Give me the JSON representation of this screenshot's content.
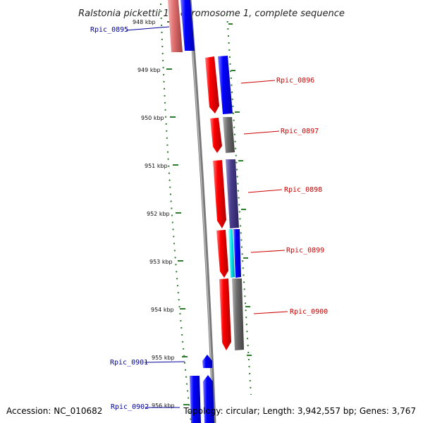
{
  "title": "Ralstonia pickettii 12J chromosome 1, complete sequence",
  "footer": {
    "accession": "Accession: NC_010682",
    "summary": "Topology: circular; Length: 3,942,557 bp; Genes: 3,767"
  },
  "colors": {
    "backbone": "#888888",
    "tick": "#2e7d2e",
    "forward_label": "#cc0000",
    "reverse_label": "#00009a"
  },
  "ticks": [
    {
      "label": "948 kbp"
    },
    {
      "label": "949 kbp"
    },
    {
      "label": "950 kbp"
    },
    {
      "label": "951 kbp"
    },
    {
      "label": "952 kbp"
    },
    {
      "label": "953 kbp"
    },
    {
      "label": "954 kbp"
    },
    {
      "label": "955 kbp"
    },
    {
      "label": "956 kbp"
    }
  ],
  "genes": [
    {
      "name": "Rpic_0895",
      "strand": "reverse",
      "label_color": "#00009a"
    },
    {
      "name": "Rpic_0896",
      "strand": "forward",
      "label_color": "#cc0000"
    },
    {
      "name": "Rpic_0897",
      "strand": "forward",
      "label_color": "#cc0000"
    },
    {
      "name": "Rpic_0898",
      "strand": "forward",
      "label_color": "#cc0000"
    },
    {
      "name": "Rpic_0899",
      "strand": "forward",
      "label_color": "#cc0000"
    },
    {
      "name": "Rpic_0900",
      "strand": "forward",
      "label_color": "#cc0000"
    },
    {
      "name": "Rpic_0901",
      "strand": "reverse",
      "label_color": "#00009a"
    },
    {
      "name": "Rpic_0902",
      "strand": "reverse",
      "label_color": "#00009a"
    }
  ]
}
